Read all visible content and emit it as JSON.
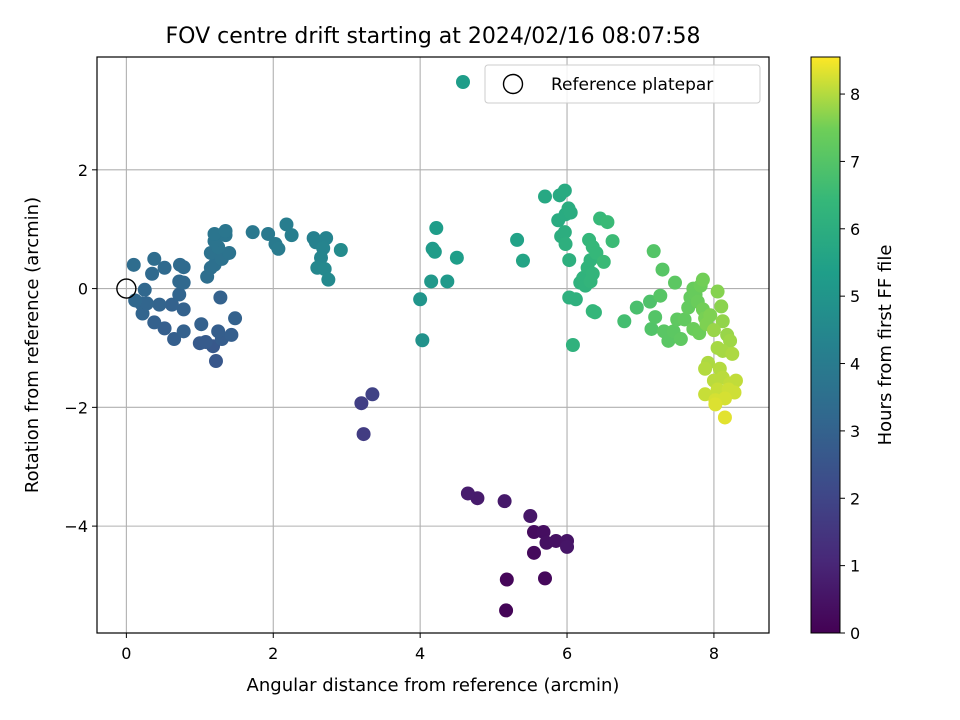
{
  "chart_data": {
    "type": "scatter",
    "title": "FOV centre drift starting at 2024/02/16 08:07:58",
    "xlabel": "Angular distance from reference (arcmin)",
    "ylabel": "Rotation from reference (arcmin)",
    "xlim": [
      -0.4,
      8.75
    ],
    "ylim": [
      -5.8,
      3.9
    ],
    "xticks": [
      0,
      2,
      4,
      6,
      8
    ],
    "yticks": [
      -4,
      -2,
      0,
      2
    ],
    "ytick_labels": [
      "−4",
      "−2",
      "0",
      "2"
    ],
    "grid": true,
    "legend": {
      "placement": "upper right",
      "entries": [
        "Reference platepar"
      ]
    },
    "reference_point": {
      "x": 0,
      "y": 0
    },
    "colorbar": {
      "label": "Hours from first FF file",
      "range": [
        0,
        8.55
      ],
      "ticks": [
        0,
        1,
        2,
        3,
        4,
        5,
        6,
        7,
        8
      ],
      "colormap": "viridis"
    },
    "series": [
      {
        "points": [
          {
            "x": 5.17,
            "y": -5.42,
            "c": 0.1
          },
          {
            "x": 5.18,
            "y": -4.9,
            "c": 0.15
          },
          {
            "x": 5.7,
            "y": -4.88,
            "c": 0.2
          },
          {
            "x": 5.55,
            "y": -4.45,
            "c": 0.25
          },
          {
            "x": 5.55,
            "y": -4.1,
            "c": 0.3
          },
          {
            "x": 5.68,
            "y": -4.1,
            "c": 0.35
          },
          {
            "x": 5.72,
            "y": -4.28,
            "c": 0.4
          },
          {
            "x": 5.85,
            "y": -4.25,
            "c": 0.45
          },
          {
            "x": 6.0,
            "y": -4.25,
            "c": 0.5
          },
          {
            "x": 6.0,
            "y": -4.35,
            "c": 0.55
          },
          {
            "x": 5.5,
            "y": -3.83,
            "c": 0.6
          },
          {
            "x": 5.15,
            "y": -3.58,
            "c": 0.65
          },
          {
            "x": 4.78,
            "y": -3.53,
            "c": 0.7
          },
          {
            "x": 4.65,
            "y": -3.45,
            "c": 0.75
          },
          {
            "x": 3.23,
            "y": -2.45,
            "c": 1.7
          },
          {
            "x": 3.2,
            "y": -1.93,
            "c": 1.8
          },
          {
            "x": 3.35,
            "y": -1.78,
            "c": 1.9
          },
          {
            "x": 1.22,
            "y": -1.22,
            "c": 2.6
          },
          {
            "x": 1.18,
            "y": -0.97,
            "c": 2.65
          },
          {
            "x": 1.0,
            "y": -0.92,
            "c": 2.7
          },
          {
            "x": 1.08,
            "y": -0.9,
            "c": 2.75
          },
          {
            "x": 1.3,
            "y": -0.85,
            "c": 2.8
          },
          {
            "x": 1.25,
            "y": -0.72,
            "c": 2.85
          },
          {
            "x": 1.43,
            "y": -0.78,
            "c": 2.9
          },
          {
            "x": 1.02,
            "y": -0.6,
            "c": 2.95
          },
          {
            "x": 1.48,
            "y": -0.5,
            "c": 3.0
          },
          {
            "x": 1.28,
            "y": -0.15,
            "c": 3.0
          },
          {
            "x": 0.65,
            "y": -0.85,
            "c": 2.9
          },
          {
            "x": 0.78,
            "y": -0.72,
            "c": 2.95
          },
          {
            "x": 0.52,
            "y": -0.67,
            "c": 2.9
          },
          {
            "x": 0.38,
            "y": -0.57,
            "c": 2.95
          },
          {
            "x": 0.78,
            "y": -0.35,
            "c": 3.0
          },
          {
            "x": 0.62,
            "y": -0.27,
            "c": 3.0
          },
          {
            "x": 0.45,
            "y": -0.27,
            "c": 3.05
          },
          {
            "x": 0.72,
            "y": -0.1,
            "c": 3.1
          },
          {
            "x": 0.22,
            "y": -0.42,
            "c": 3.1
          },
          {
            "x": 0.2,
            "y": -0.25,
            "c": 3.15
          },
          {
            "x": 0.28,
            "y": -0.25,
            "c": 3.15
          },
          {
            "x": 0.12,
            "y": -0.2,
            "c": 3.2
          },
          {
            "x": 0.25,
            "y": -0.02,
            "c": 3.2
          },
          {
            "x": 0.72,
            "y": 0.12,
            "c": 3.25
          },
          {
            "x": 0.78,
            "y": 0.1,
            "c": 3.25
          },
          {
            "x": 0.35,
            "y": 0.25,
            "c": 3.3
          },
          {
            "x": 0.52,
            "y": 0.35,
            "c": 3.3
          },
          {
            "x": 0.73,
            "y": 0.4,
            "c": 3.35
          },
          {
            "x": 0.78,
            "y": 0.36,
            "c": 3.35
          },
          {
            "x": 0.38,
            "y": 0.5,
            "c": 3.4
          },
          {
            "x": 0.1,
            "y": 0.4,
            "c": 3.4
          },
          {
            "x": 1.1,
            "y": 0.2,
            "c": 3.45
          },
          {
            "x": 1.15,
            "y": 0.35,
            "c": 3.5
          },
          {
            "x": 1.2,
            "y": 0.4,
            "c": 3.55
          },
          {
            "x": 1.15,
            "y": 0.6,
            "c": 3.6
          },
          {
            "x": 1.3,
            "y": 0.5,
            "c": 3.6
          },
          {
            "x": 1.4,
            "y": 0.6,
            "c": 3.65
          },
          {
            "x": 1.25,
            "y": 0.7,
            "c": 3.7
          },
          {
            "x": 1.2,
            "y": 0.8,
            "c": 3.7
          },
          {
            "x": 1.35,
            "y": 0.9,
            "c": 3.75
          },
          {
            "x": 1.2,
            "y": 0.92,
            "c": 3.75
          },
          {
            "x": 1.35,
            "y": 0.97,
            "c": 3.8
          },
          {
            "x": 1.72,
            "y": 0.95,
            "c": 3.85
          },
          {
            "x": 1.93,
            "y": 0.92,
            "c": 3.9
          },
          {
            "x": 2.03,
            "y": 0.75,
            "c": 3.95
          },
          {
            "x": 2.07,
            "y": 0.67,
            "c": 4.0
          },
          {
            "x": 2.18,
            "y": 1.08,
            "c": 4.05
          },
          {
            "x": 2.25,
            "y": 0.9,
            "c": 4.1
          },
          {
            "x": 2.55,
            "y": 0.85,
            "c": 4.2
          },
          {
            "x": 2.58,
            "y": 0.78,
            "c": 4.25
          },
          {
            "x": 2.72,
            "y": 0.85,
            "c": 4.3
          },
          {
            "x": 2.68,
            "y": 0.68,
            "c": 4.35
          },
          {
            "x": 2.65,
            "y": 0.52,
            "c": 4.4
          },
          {
            "x": 2.6,
            "y": 0.35,
            "c": 4.45
          },
          {
            "x": 2.7,
            "y": 0.33,
            "c": 4.5
          },
          {
            "x": 2.75,
            "y": 0.15,
            "c": 4.55
          },
          {
            "x": 2.92,
            "y": 0.65,
            "c": 4.6
          },
          {
            "x": 4.03,
            "y": -0.87,
            "c": 4.9
          },
          {
            "x": 4.0,
            "y": -0.18,
            "c": 5.0
          },
          {
            "x": 4.15,
            "y": 0.12,
            "c": 5.1
          },
          {
            "x": 4.37,
            "y": 0.12,
            "c": 5.15
          },
          {
            "x": 4.17,
            "y": 0.67,
            "c": 5.2
          },
          {
            "x": 4.2,
            "y": 0.62,
            "c": 5.25
          },
          {
            "x": 4.22,
            "y": 1.02,
            "c": 5.3
          },
          {
            "x": 4.5,
            "y": 0.52,
            "c": 5.35
          },
          {
            "x": 5.32,
            "y": 0.82,
            "c": 5.5
          },
          {
            "x": 5.4,
            "y": 0.47,
            "c": 5.6
          },
          {
            "x": 5.7,
            "y": 1.55,
            "c": 5.75
          },
          {
            "x": 5.9,
            "y": 1.57,
            "c": 5.8
          },
          {
            "x": 5.97,
            "y": 1.65,
            "c": 5.85
          },
          {
            "x": 5.88,
            "y": 1.15,
            "c": 5.9
          },
          {
            "x": 5.98,
            "y": 1.25,
            "c": 5.9
          },
          {
            "x": 6.02,
            "y": 1.35,
            "c": 5.95
          },
          {
            "x": 6.05,
            "y": 1.28,
            "c": 5.95
          },
          {
            "x": 5.92,
            "y": 0.88,
            "c": 6.0
          },
          {
            "x": 5.97,
            "y": 0.95,
            "c": 6.0
          },
          {
            "x": 5.98,
            "y": 0.75,
            "c": 6.05
          },
          {
            "x": 6.03,
            "y": 0.48,
            "c": 6.05
          },
          {
            "x": 6.03,
            "y": -0.15,
            "c": 6.1
          },
          {
            "x": 6.12,
            "y": -0.18,
            "c": 6.1
          },
          {
            "x": 6.08,
            "y": -0.95,
            "c": 6.15
          },
          {
            "x": 6.18,
            "y": 0.1,
            "c": 6.15
          },
          {
            "x": 6.22,
            "y": 0.18,
            "c": 6.2
          },
          {
            "x": 6.25,
            "y": 0.05,
            "c": 6.2
          },
          {
            "x": 6.28,
            "y": 0.35,
            "c": 6.25
          },
          {
            "x": 6.32,
            "y": 0.48,
            "c": 6.25
          },
          {
            "x": 6.35,
            "y": 0.25,
            "c": 6.3
          },
          {
            "x": 6.32,
            "y": 0.12,
            "c": 6.3
          },
          {
            "x": 6.35,
            "y": -0.38,
            "c": 6.35
          },
          {
            "x": 6.38,
            "y": -0.4,
            "c": 6.35
          },
          {
            "x": 6.3,
            "y": 0.82,
            "c": 6.35
          },
          {
            "x": 6.35,
            "y": 0.7,
            "c": 6.4
          },
          {
            "x": 6.4,
            "y": 0.6,
            "c": 6.4
          },
          {
            "x": 6.45,
            "y": 1.18,
            "c": 6.45
          },
          {
            "x": 6.55,
            "y": 1.12,
            "c": 6.5
          },
          {
            "x": 6.5,
            "y": 0.45,
            "c": 6.5
          },
          {
            "x": 6.62,
            "y": 0.8,
            "c": 6.55
          },
          {
            "x": 6.78,
            "y": -0.55,
            "c": 6.7
          },
          {
            "x": 6.95,
            "y": -0.32,
            "c": 6.8
          },
          {
            "x": 7.13,
            "y": -0.22,
            "c": 6.9
          },
          {
            "x": 7.15,
            "y": -0.68,
            "c": 6.95
          },
          {
            "x": 7.18,
            "y": 0.63,
            "c": 7.0
          },
          {
            "x": 7.2,
            "y": -0.48,
            "c": 7.0
          },
          {
            "x": 7.27,
            "y": -0.12,
            "c": 7.05
          },
          {
            "x": 7.3,
            "y": 0.32,
            "c": 7.05
          },
          {
            "x": 7.32,
            "y": -0.72,
            "c": 7.1
          },
          {
            "x": 7.38,
            "y": -0.88,
            "c": 7.1
          },
          {
            "x": 7.45,
            "y": -0.72,
            "c": 7.15
          },
          {
            "x": 7.47,
            "y": 0.1,
            "c": 7.15
          },
          {
            "x": 7.5,
            "y": -0.52,
            "c": 7.2
          },
          {
            "x": 7.55,
            "y": -0.85,
            "c": 7.2
          },
          {
            "x": 7.6,
            "y": -0.52,
            "c": 7.25
          },
          {
            "x": 7.65,
            "y": -0.32,
            "c": 7.3
          },
          {
            "x": 7.68,
            "y": -0.15,
            "c": 7.3
          },
          {
            "x": 7.72,
            "y": 0.0,
            "c": 7.35
          },
          {
            "x": 7.75,
            "y": -0.1,
            "c": 7.35
          },
          {
            "x": 7.78,
            "y": -0.22,
            "c": 7.4
          },
          {
            "x": 7.72,
            "y": -0.68,
            "c": 7.4
          },
          {
            "x": 7.8,
            "y": -0.75,
            "c": 7.45
          },
          {
            "x": 7.82,
            "y": 0.05,
            "c": 7.45
          },
          {
            "x": 7.85,
            "y": 0.15,
            "c": 7.5
          },
          {
            "x": 7.85,
            "y": -0.35,
            "c": 7.5
          },
          {
            "x": 7.88,
            "y": -0.5,
            "c": 7.55
          },
          {
            "x": 7.9,
            "y": -0.6,
            "c": 7.6
          },
          {
            "x": 7.95,
            "y": -0.45,
            "c": 7.6
          },
          {
            "x": 8.05,
            "y": -0.05,
            "c": 7.65
          },
          {
            "x": 8.1,
            "y": -0.3,
            "c": 7.7
          },
          {
            "x": 8.12,
            "y": -0.55,
            "c": 7.75
          },
          {
            "x": 8.0,
            "y": -0.7,
            "c": 7.8
          },
          {
            "x": 8.18,
            "y": -0.78,
            "c": 7.8
          },
          {
            "x": 8.22,
            "y": -0.88,
            "c": 7.85
          },
          {
            "x": 8.05,
            "y": -1.0,
            "c": 7.9
          },
          {
            "x": 8.12,
            "y": -1.05,
            "c": 7.9
          },
          {
            "x": 8.25,
            "y": -1.1,
            "c": 7.95
          },
          {
            "x": 7.92,
            "y": -1.25,
            "c": 7.95
          },
          {
            "x": 7.88,
            "y": -1.35,
            "c": 8.0
          },
          {
            "x": 8.08,
            "y": -1.35,
            "c": 8.0
          },
          {
            "x": 8.12,
            "y": -1.5,
            "c": 8.05
          },
          {
            "x": 8.0,
            "y": -1.55,
            "c": 8.05
          },
          {
            "x": 8.22,
            "y": -1.6,
            "c": 8.1
          },
          {
            "x": 8.3,
            "y": -1.55,
            "c": 8.1
          },
          {
            "x": 7.88,
            "y": -1.78,
            "c": 8.15
          },
          {
            "x": 8.05,
            "y": -1.7,
            "c": 8.15
          },
          {
            "x": 8.2,
            "y": -1.7,
            "c": 8.2
          },
          {
            "x": 8.28,
            "y": -1.75,
            "c": 8.2
          },
          {
            "x": 8.02,
            "y": -1.88,
            "c": 8.25
          },
          {
            "x": 8.15,
            "y": -1.85,
            "c": 8.25
          },
          {
            "x": 8.02,
            "y": -1.95,
            "c": 8.3
          },
          {
            "x": 8.15,
            "y": -2.17,
            "c": 8.35
          }
        ]
      }
    ]
  },
  "legend_marker_color_hours": 5.3
}
